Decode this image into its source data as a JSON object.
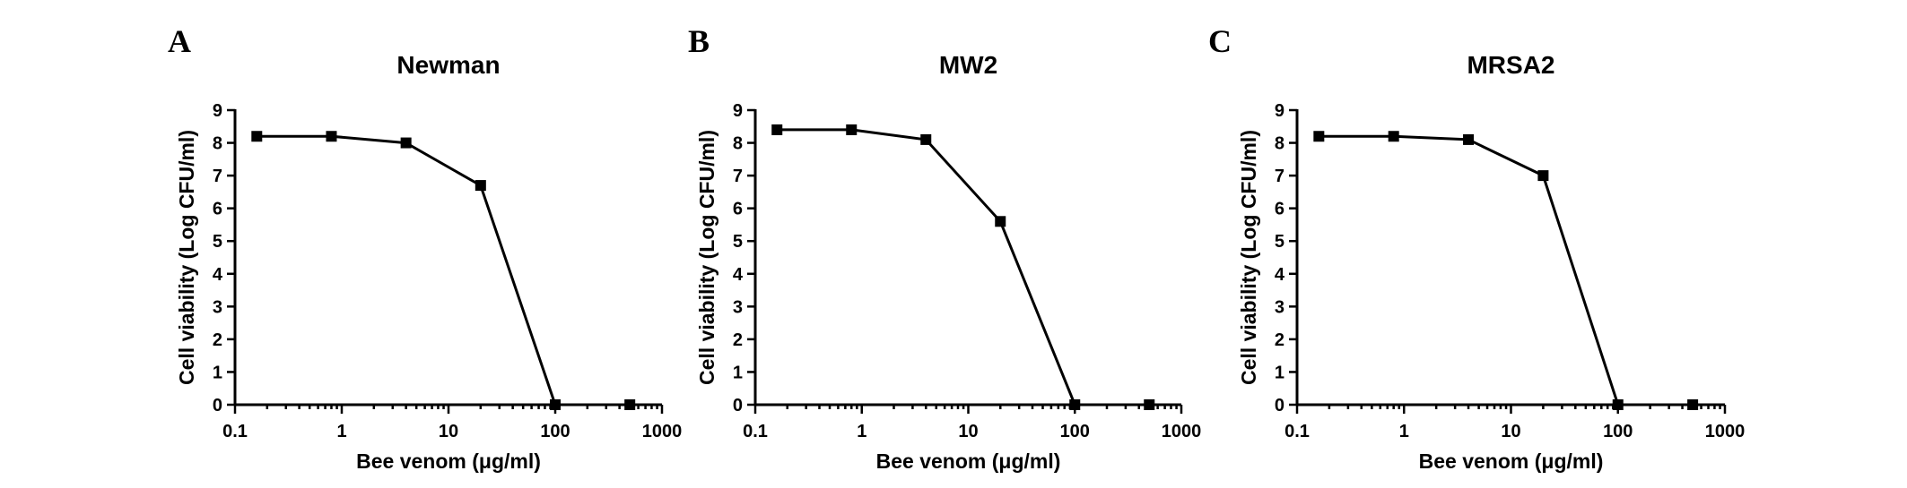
{
  "chart_data": [
    {
      "panel": "A",
      "type": "line",
      "title": "Newman",
      "xlabel": "Bee venom (μg/ml)",
      "ylabel": "Cell viability (Log CFU/ml)",
      "xscale": "log",
      "xlim": [
        0.1,
        1000
      ],
      "ylim": [
        0,
        9
      ],
      "xticks": [
        "0.1",
        "1",
        "10",
        "100",
        "1000"
      ],
      "yticks": [
        "0",
        "1",
        "2",
        "3",
        "4",
        "5",
        "6",
        "7",
        "8",
        "9"
      ],
      "x": [
        0.16,
        0.8,
        4,
        20,
        100,
        500
      ],
      "series": [
        {
          "values": [
            8.2,
            8.2,
            8.0,
            6.7,
            0,
            0
          ]
        }
      ]
    },
    {
      "panel": "B",
      "type": "line",
      "title": "MW2",
      "xlabel": "Bee venom (μg/ml)",
      "ylabel": "Cell viability (Log CFU/ml)",
      "xscale": "log",
      "xlim": [
        0.1,
        1000
      ],
      "ylim": [
        0,
        9
      ],
      "xticks": [
        "0.1",
        "1",
        "10",
        "100",
        "1000"
      ],
      "yticks": [
        "0",
        "1",
        "2",
        "3",
        "4",
        "5",
        "6",
        "7",
        "8",
        "9"
      ],
      "x": [
        0.16,
        0.8,
        4,
        20,
        100,
        500
      ],
      "series": [
        {
          "values": [
            8.4,
            8.4,
            8.1,
            5.6,
            0,
            0
          ]
        }
      ]
    },
    {
      "panel": "C",
      "type": "line",
      "title": "MRSA2",
      "xlabel": "Bee venom (μg/ml)",
      "ylabel": "Cell viability (Log CFU/ml)",
      "xscale": "log",
      "xlim": [
        0.1,
        1000
      ],
      "ylim": [
        0,
        9
      ],
      "xticks": [
        "0.1",
        "1",
        "10",
        "100",
        "1000"
      ],
      "yticks": [
        "0",
        "1",
        "2",
        "3",
        "4",
        "5",
        "6",
        "7",
        "8",
        "9"
      ],
      "x": [
        0.16,
        0.8,
        4,
        20,
        100,
        500
      ],
      "series": [
        {
          "values": [
            8.2,
            8.2,
            8.1,
            7.0,
            0,
            0
          ]
        }
      ]
    }
  ]
}
